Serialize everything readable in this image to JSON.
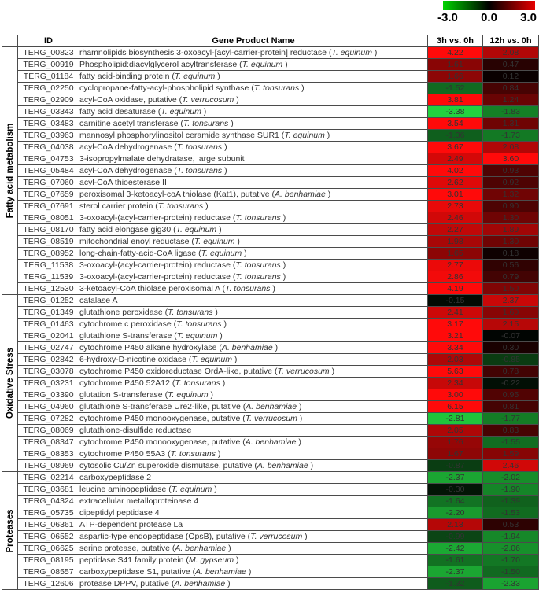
{
  "colorbar": {
    "min_label": "-3.0",
    "mid_label": "0.0",
    "max_label": "3.0",
    "gradient_colors": [
      "#00d400",
      "#000000",
      "#e60000"
    ]
  },
  "table_headers": {
    "id": "ID",
    "name": "Gene Product Name",
    "c1": "3h vs. 0h",
    "c2": "12h vs. 0h"
  },
  "chart_data": {
    "type": "heatmap",
    "columns": [
      "3h vs. 0h",
      "12h vs. 0h"
    ],
    "row_id_label": "ID",
    "row_name_label": "Gene Product Name",
    "color_scale": {
      "domain": [
        -3.0,
        0.0,
        3.0
      ],
      "colors": [
        "#00d400",
        "#000000",
        "#e60000"
      ],
      "tick_labels": [
        "-3.0",
        "0.0",
        "3.0"
      ]
    },
    "groups": [
      {
        "label": "Fatty acid metabolism",
        "rows": [
          {
            "id": "TERG_00823",
            "name": "rhamnolipids biosynthesis 3-oxoacyl-[acyl-carrier-protein] reductase",
            "species": "T. equinum",
            "values": [
              4.22,
              2.08
            ]
          },
          {
            "id": "TERG_00919",
            "name": "Phospholipid:diacylglycerol acyltransferase",
            "species": "T. equinum",
            "values": [
              1.61,
              0.47
            ]
          },
          {
            "id": "TERG_01184",
            "name": "fatty acid-binding protein",
            "species": "T. equinum",
            "values": [
              1.66,
              0.12
            ]
          },
          {
            "id": "TERG_02250",
            "name": "cyclopropane-fatty-acyl-phospholipid synthase",
            "species": "T. tonsurans",
            "values": [
              -1.52,
              0.84
            ]
          },
          {
            "id": "TERG_02909",
            "name": "acyl-CoA oxidase, putative",
            "species": "T. verrucosum",
            "values": [
              3.81,
              1.24
            ]
          },
          {
            "id": "TERG_03343",
            "name": "fatty acid desaturase",
            "species": "T. equinum",
            "values": [
              -3.38,
              -1.83
            ]
          },
          {
            "id": "TERG_03483",
            "name": "carnitine acetyl transferase",
            "species": "T. tonsurans",
            "values": [
              3.54,
              1.31
            ]
          },
          {
            "id": "TERG_03963",
            "name": "mannosyl phosphorylinositol ceramide synthase SUR1",
            "species": "T. equinum",
            "values": [
              -1.36,
              -1.73
            ]
          },
          {
            "id": "TERG_04038",
            "name": "acyl-CoA dehydrogenase",
            "species": "T. tonsurans",
            "values": [
              3.67,
              2.08
            ]
          },
          {
            "id": "TERG_04753",
            "name": "3-isopropylmalate dehydratase, large subunit",
            "species": null,
            "values": [
              2.49,
              3.6
            ]
          },
          {
            "id": "TERG_05484",
            "name": "acyl-CoA dehydrogenase",
            "species": "T. tonsurans",
            "values": [
              4.02,
              0.93
            ]
          },
          {
            "id": "TERG_07060",
            "name": "acyl-CoA thioesterase II",
            "species": null,
            "values": [
              2.62,
              0.92
            ]
          },
          {
            "id": "TERG_07659",
            "name": "peroxisomal 3-ketoacyl-coA thiolase (Kat1), putative",
            "species": "A. benhamiae",
            "values": [
              3.01,
              1.32
            ]
          },
          {
            "id": "TERG_07691",
            "name": "sterol carrier protein",
            "species": "T. tonsurans",
            "values": [
              2.73,
              0.9
            ]
          },
          {
            "id": "TERG_08051",
            "name": "3-oxoacyl-(acyl-carrier-protein) reductase",
            "species": "T. tonsurans",
            "values": [
              2.46,
              1.3
            ]
          },
          {
            "id": "TERG_08170",
            "name": "fatty acid elongase gig30",
            "species": "T. equinum",
            "values": [
              2.27,
              1.89
            ]
          },
          {
            "id": "TERG_08519",
            "name": "mitochondrial enoyl reductase",
            "species": "T. equinum",
            "values": [
              1.98,
              1.3
            ]
          },
          {
            "id": "TERG_08952",
            "name": "long-chain-fatty-acid-CoA ligase",
            "species": "T. equinum",
            "values": [
              1.65,
              0.18
            ]
          },
          {
            "id": "TERG_11538",
            "name": "3-oxoacyl-(acyl-carrier-protein) reductase",
            "species": "T. tonsurans",
            "values": [
              2.77,
              0.56
            ]
          },
          {
            "id": "TERG_11539",
            "name": "3-oxoacyl-(acyl-carrier-protein) reductase",
            "species": "T. tonsurans",
            "values": [
              2.86,
              0.79
            ]
          },
          {
            "id": "TERG_12530",
            "name": "3-ketoacyl-CoA thiolase peroxisomal A",
            "species": "T. tonsurans",
            "values": [
              4.19,
              1.5
            ]
          }
        ]
      },
      {
        "label": "Oxidative Stress",
        "rows": [
          {
            "id": "TERG_01252",
            "name": "catalase A",
            "species": null,
            "values": [
              -0.15,
              2.37
            ]
          },
          {
            "id": "TERG_01349",
            "name": "glutathione peroxidase",
            "species": "T. tonsurans",
            "values": [
              2.41,
              1.6
            ]
          },
          {
            "id": "TERG_01463",
            "name": "cytochrome c peroxidase",
            "species": "T. tonsurans",
            "values": [
              3.17,
              2.15
            ]
          },
          {
            "id": "TERG_02041",
            "name": "glutathione S-transferase",
            "species": "T. equinum",
            "values": [
              3.21,
              -0.07
            ]
          },
          {
            "id": "TERG_02747",
            "name": "cytochrome P450 alkane hydroxylase",
            "species": "A. benhamiae",
            "values": [
              3.34,
              0.3
            ]
          },
          {
            "id": "TERG_02842",
            "name": "6-hydroxy-D-nicotine oxidase",
            "species": "T. equinum",
            "values": [
              2.03,
              -0.85
            ]
          },
          {
            "id": "TERG_03078",
            "name": "cytochrome P450 oxidoreductase OrdA-like, putative",
            "species": "T. verrucosum",
            "values": [
              5.63,
              0.78
            ]
          },
          {
            "id": "TERG_03231",
            "name": "cytochrome P450 52A12",
            "species": "T. tonsurans",
            "values": [
              2.34,
              -0.22
            ]
          },
          {
            "id": "TERG_03390",
            "name": "glutation S-transferase",
            "species": "T. equinum",
            "values": [
              3.0,
              0.95
            ]
          },
          {
            "id": "TERG_04960",
            "name": "glutathione S-transferase Ure2-like, putative",
            "species": "A. benhamiae",
            "values": [
              6.15,
              0.81
            ]
          },
          {
            "id": "TERG_07282",
            "name": "cytochrome P450 monooxygenase, putative",
            "species": "T. verrucosum",
            "values": [
              -2.81,
              -1.77
            ]
          },
          {
            "id": "TERG_08069",
            "name": "glutathione-disulfide reductase",
            "species": null,
            "values": [
              2.05,
              0.83
            ]
          },
          {
            "id": "TERG_08347",
            "name": "cytochrome P450 monooxygenase, putative",
            "species": "A. benhamiae",
            "values": [
              1.76,
              -1.55
            ]
          },
          {
            "id": "TERG_08353",
            "name": "cytochrome P450 55A3",
            "species": "T. tonsurans",
            "values": [
              1.67,
              1.59
            ]
          },
          {
            "id": "TERG_08969",
            "name": "cytosolic Cu/Zn superoxide dismutase, putative",
            "species": "A. benhamiae",
            "values": [
              -0.87,
              2.46
            ]
          }
        ]
      },
      {
        "label": "Proteases",
        "rows": [
          {
            "id": "TERG_02214",
            "name": "carboxypeptidase 2",
            "species": null,
            "values": [
              -2.37,
              -2.02
            ]
          },
          {
            "id": "TERG_03681",
            "name": "leucine aminopeptidase",
            "species": "T. equinum",
            "values": [
              -0.3,
              -1.9
            ]
          },
          {
            "id": "TERG_04324",
            "name": "extracellular metalloproteinase 4",
            "species": null,
            "values": [
              -1.64,
              -1.39
            ]
          },
          {
            "id": "TERG_05735",
            "name": "dipeptidyl peptidase 4",
            "species": null,
            "values": [
              -2.2,
              -1.53
            ]
          },
          {
            "id": "TERG_06361",
            "name": "ATP-dependent protease La",
            "species": null,
            "values": [
              2.13,
              0.53
            ]
          },
          {
            "id": "TERG_06552",
            "name": "aspartic-type endopeptidase (OpsB), putative",
            "species": "T. verrucosum",
            "values": [
              -0.99,
              -1.94
            ]
          },
          {
            "id": "TERG_06625",
            "name": "serine protease, putative",
            "species": "A. benhamiae",
            "values": [
              -2.42,
              -2.06
            ]
          },
          {
            "id": "TERG_08195",
            "name": "peptidase S41 family protein",
            "species": "M. gypseum",
            "values": [
              -1.61,
              -1.7
            ]
          },
          {
            "id": "TERG_08557",
            "name": "carboxypeptidase S1, putative",
            "species": "A. benhamiae",
            "values": [
              -2.37,
              -1.5
            ]
          },
          {
            "id": "TERG_12606",
            "name": "protease DPPV, putative",
            "species": "A. benhamiae",
            "values": [
              -1.32,
              -2.33
            ]
          }
        ]
      }
    ]
  }
}
